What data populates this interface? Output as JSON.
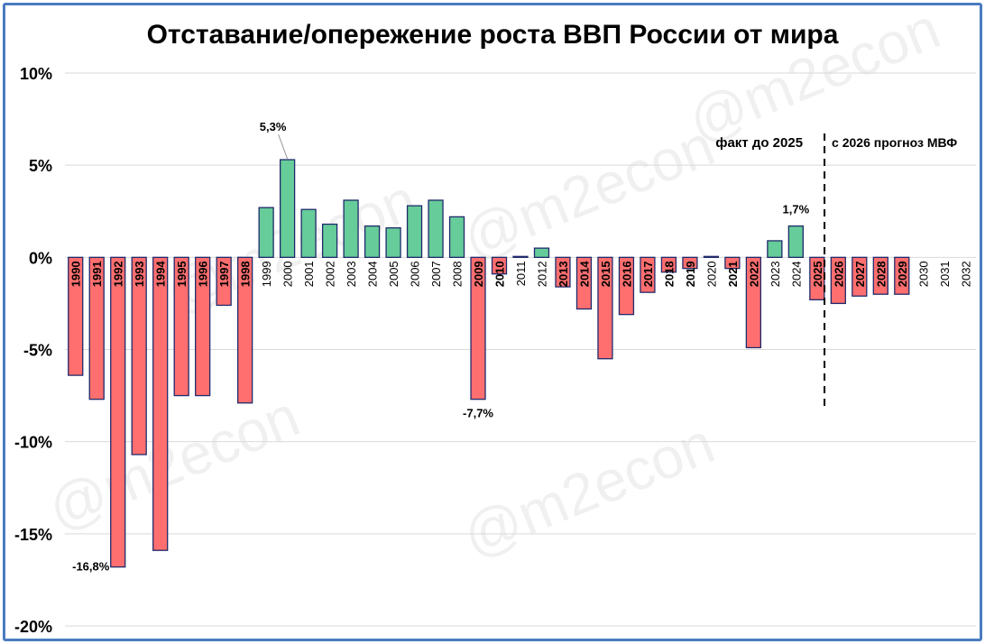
{
  "watermark": "@m2econ",
  "chart_data": {
    "type": "bar",
    "title": "Отставание/опережение роста ВВП России от мира",
    "ylim": [
      -20,
      10
    ],
    "yticks": [
      10,
      5,
      0,
      -5,
      -10,
      -15,
      -20
    ],
    "ytick_labels": [
      "10%",
      "5%",
      "0%",
      "-5%",
      "-10%",
      "-15%",
      "-20%"
    ],
    "grid": true,
    "categories": [
      "1990",
      "1991",
      "1992",
      "1993",
      "1994",
      "1995",
      "1996",
      "1997",
      "1998",
      "1999",
      "2000",
      "2001",
      "2002",
      "2003",
      "2004",
      "2005",
      "2006",
      "2007",
      "2008",
      "2009",
      "2010",
      "2011",
      "2012",
      "2013",
      "2014",
      "2015",
      "2016",
      "2017",
      "2018",
      "2019",
      "2020",
      "2021",
      "2022",
      "2023",
      "2024",
      "2025",
      "2026",
      "2027",
      "2028",
      "2029",
      "2030",
      "2031",
      "2032"
    ],
    "values": [
      -6.4,
      -7.7,
      -16.8,
      -10.7,
      -15.9,
      -7.5,
      -7.5,
      -2.6,
      -7.9,
      2.7,
      5.3,
      2.6,
      1.8,
      3.1,
      1.7,
      1.6,
      2.8,
      3.1,
      2.2,
      -7.7,
      -0.9,
      0.05,
      0.5,
      -1.6,
      -2.8,
      -5.5,
      -3.1,
      -1.9,
      -0.8,
      -0.6,
      0.05,
      -0.6,
      -4.9,
      0.9,
      1.7,
      -2.3,
      -2.5,
      -2.1,
      -2.0,
      -2.0,
      0,
      0,
      0
    ],
    "colors": {
      "positive": "#66cc99",
      "negative": "#ff6f6f",
      "outline": "#1f2a6b"
    },
    "data_labels": [
      {
        "category": "1992",
        "text": "-16,8%"
      },
      {
        "category": "2000",
        "text": "5,3%"
      },
      {
        "category": "2009",
        "text": "-7,7%"
      },
      {
        "category": "2024",
        "text": "1,7%"
      }
    ],
    "annotations": {
      "fact": "факт до 2025",
      "forecast": "с 2026 прогноз МВФ"
    }
  }
}
